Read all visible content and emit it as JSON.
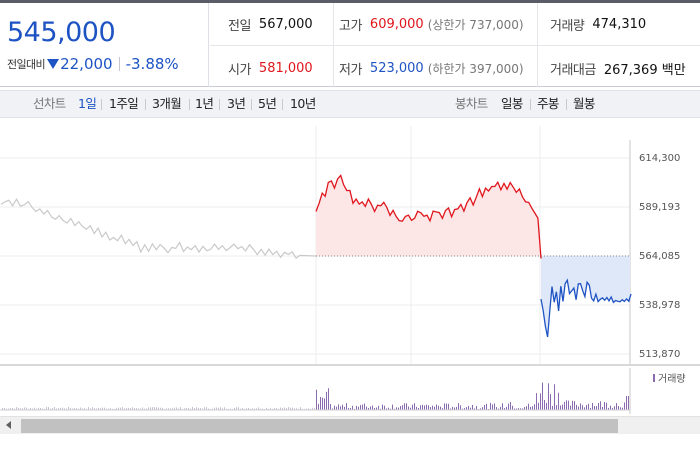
{
  "quote": {
    "price": "545,000",
    "change_label": "전일대비",
    "change_value": "22,000",
    "change_percent": "-3.88%",
    "prev_close": {
      "label": "전일",
      "value": "567,000"
    },
    "high": {
      "label": "고가",
      "value": "609,000",
      "sub": "(상한가 737,000)"
    },
    "volume": {
      "label": "거래량",
      "value": "474,310"
    },
    "open": {
      "label": "시가",
      "value": "581,000"
    },
    "low": {
      "label": "저가",
      "value": "523,000",
      "sub": "(하한가 397,000)"
    },
    "trade_value": {
      "label": "거래대금",
      "value": "267,369 백만"
    }
  },
  "tabs": {
    "line_chart_label": "선차트",
    "periods": [
      "1일",
      "1주일",
      "3개월",
      "1년",
      "3년",
      "5년",
      "10년"
    ],
    "active_period": "1일",
    "candle_chart_label": "봉차트",
    "candles": [
      "일봉",
      "주봉",
      "월봉"
    ]
  },
  "colors": {
    "up": "#e0161d",
    "down": "#1e53c4",
    "prev_day": "#c9c9c9",
    "volume": "#8b6bb0"
  },
  "chart_data": {
    "type": "line",
    "title": "",
    "y_ticks": [
      "614,300",
      "589,193",
      "564,085",
      "538,978",
      "513,870"
    ],
    "ylim": [
      513870,
      614300
    ],
    "reference_price": 564085,
    "volume_legend": "거래량",
    "series": [
      {
        "values": [
          590500,
          591800,
          592700,
          589800,
          593200,
          589600,
          590300,
          591900,
          589000,
          586900,
          588200,
          585600,
          587400,
          584100,
          582900,
          584800,
          582300,
          581000,
          583300,
          579700,
          581600,
          579200,
          577800,
          579600,
          575600,
          578400,
          573800,
          576300,
          572300,
          573600,
          571900,
          574700,
          570400,
          572600,
          569500,
          571400,
          566100,
          569800,
          566500,
          570300,
          567300,
          570000,
          568100,
          565800,
          568500,
          568000,
          571000,
          566400,
          568700,
          567300,
          569400,
          566100,
          569000,
          566800,
          567500,
          570200,
          567500,
          569400,
          566900,
          568400,
          570200,
          567800,
          568900,
          566700,
          569800,
          567500,
          564800,
          567500,
          564500,
          567600,
          564800,
          566500,
          563400,
          566000,
          564900,
          566200,
          563000,
          564400
        ]
      },
      {
        "values": [
          586900,
          591100,
          596300,
          594700,
          601800,
          602500,
          598900,
          603600,
          605400,
          600500,
          597600,
          597700,
          591100,
          593300,
          590700,
          591800,
          589500,
          593300,
          590400,
          586900,
          590100,
          589800,
          591600,
          588900,
          584900,
          587500,
          584400,
          582200,
          581900,
          584400,
          585000,
          582400,
          583400,
          587000,
          586200,
          584500,
          585000,
          582100,
          587100,
          586700,
          586300,
          583400,
          587400,
          588700,
          584200,
          587900,
          588200,
          590500,
          587100,
          591400,
          593900,
          590200,
          594200,
          598500,
          594500,
          598900,
          597400,
          599700,
          599700,
          601900,
          598000,
          601300,
          598300,
          601700,
          599300,
          596700,
          598400,
          594300,
          591800,
          591600,
          588600,
          586100,
          583500,
          562800
        ]
      },
      {
        "values": [
          542000,
          536000,
          528000,
          522600,
          536000,
          548400,
          540400,
          545800,
          535900,
          548600,
          540800,
          549800,
          551700,
          544800,
          546200,
          547700,
          541700,
          549800,
          549900,
          546300,
          543300,
          550600,
          549100,
          542500,
          541100,
          544500,
          540700,
          541900,
          542600,
          541400,
          542800,
          541100,
          543100,
          540300,
          541300,
          540900,
          540600,
          541700,
          540800,
          542100,
          540900,
          544600
        ]
      }
    ]
  }
}
